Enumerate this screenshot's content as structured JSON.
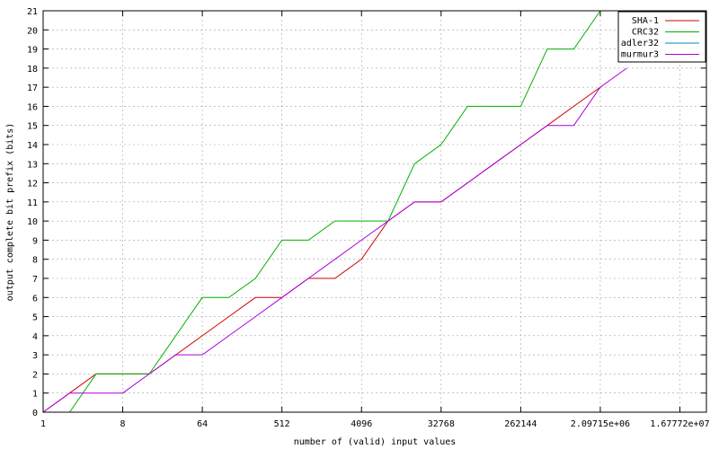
{
  "chart_data": {
    "type": "line",
    "title": "",
    "xlabel": "number of (valid) input values",
    "ylabel": "output complete bit prefix (bits)",
    "x_scale": "log2",
    "xlim": [
      1,
      33554432
    ],
    "ylim": [
      0,
      21
    ],
    "x_ticks": [
      {
        "value": 1,
        "label": "1"
      },
      {
        "value": 8,
        "label": "8"
      },
      {
        "value": 64,
        "label": "64"
      },
      {
        "value": 512,
        "label": "512"
      },
      {
        "value": 4096,
        "label": "4096"
      },
      {
        "value": 32768,
        "label": "32768"
      },
      {
        "value": 262144,
        "label": "262144"
      },
      {
        "value": 2097152,
        "label": "2.09715e+06"
      },
      {
        "value": 16777216,
        "label": "1.67772e+07"
      }
    ],
    "y_ticks": [
      0,
      1,
      2,
      3,
      4,
      5,
      6,
      7,
      8,
      9,
      10,
      11,
      12,
      13,
      14,
      15,
      16,
      17,
      18,
      19,
      20,
      21
    ],
    "grid": true,
    "legend_position": "top-right",
    "series": [
      {
        "name": "SHA-1",
        "color": "#d00000",
        "x": [
          1,
          2,
          4,
          8,
          16,
          32,
          64,
          128,
          256,
          512,
          1024,
          2048,
          4096,
          8192,
          16384,
          32768,
          65536,
          131072,
          262144,
          524288,
          1048576,
          2097152
        ],
        "y": [
          0,
          1,
          2,
          2,
          2,
          3,
          4,
          5,
          6,
          6,
          7,
          7,
          8,
          10,
          11,
          11,
          12,
          13,
          14,
          15,
          16,
          17
        ]
      },
      {
        "name": "CRC32",
        "color": "#00b000",
        "x": [
          1,
          2,
          4,
          8,
          16,
          32,
          64,
          128,
          256,
          512,
          1024,
          2048,
          4096,
          8192,
          16384,
          32768,
          65536,
          131072,
          262144,
          524288,
          1048576,
          2097152
        ],
        "y": [
          0,
          0,
          2,
          2,
          2,
          4,
          6,
          6,
          7,
          9,
          9,
          10,
          10,
          10,
          13,
          14,
          16,
          16,
          16,
          19,
          19,
          21
        ]
      },
      {
        "name": "adler32",
        "color": "#0088cc",
        "x": [],
        "y": []
      },
      {
        "name": "murmur3",
        "color": "#aa00dd",
        "x": [
          1,
          2,
          4,
          8,
          16,
          32,
          64,
          128,
          256,
          512,
          1024,
          2048,
          4096,
          8192,
          16384,
          32768,
          65536,
          131072,
          262144,
          524288,
          1048576,
          2097152,
          4194304
        ],
        "y": [
          0,
          1,
          1,
          1,
          2,
          3,
          3,
          4,
          5,
          6,
          7,
          8,
          9,
          10,
          11,
          11,
          12,
          13,
          14,
          15,
          15,
          17,
          18
        ]
      }
    ]
  }
}
